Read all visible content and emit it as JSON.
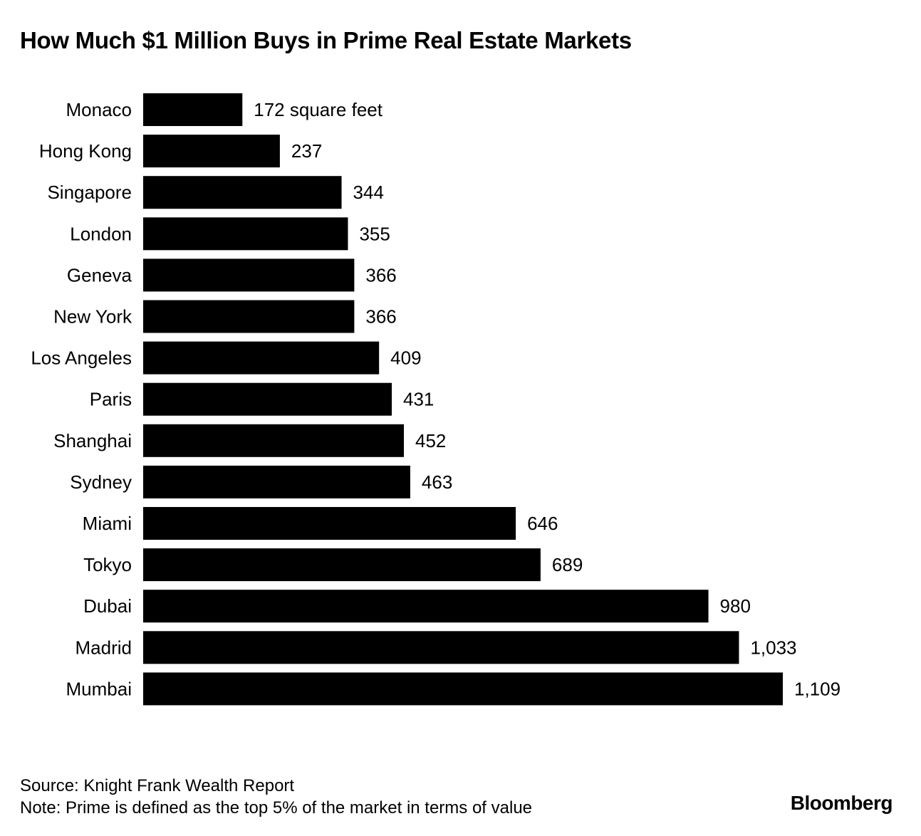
{
  "chart_data": {
    "type": "bar",
    "orientation": "horizontal",
    "title": "How Much $1 Million Buys in Prime Real Estate Markets",
    "unit_label": "square feet",
    "categories": [
      "Monaco",
      "Hong Kong",
      "Singapore",
      "London",
      "Geneva",
      "New York",
      "Los Angeles",
      "Paris",
      "Shanghai",
      "Sydney",
      "Miami",
      "Tokyo",
      "Dubai",
      "Madrid",
      "Mumbai"
    ],
    "values": [
      172,
      237,
      344,
      355,
      366,
      366,
      409,
      431,
      452,
      463,
      646,
      689,
      980,
      1033,
      1109
    ],
    "value_labels": [
      "172 square feet",
      "237",
      "344",
      "355",
      "366",
      "366",
      "409",
      "431",
      "452",
      "463",
      "646",
      "689",
      "980",
      "1,033",
      "1,109"
    ],
    "xlim": [
      0,
      1109
    ],
    "bar_color": "#000000"
  },
  "footer": {
    "source": "Source: Knight Frank Wealth Report",
    "note": "Note: Prime is defined as the top 5% of the market in terms of value",
    "brand": "Bloomberg"
  }
}
